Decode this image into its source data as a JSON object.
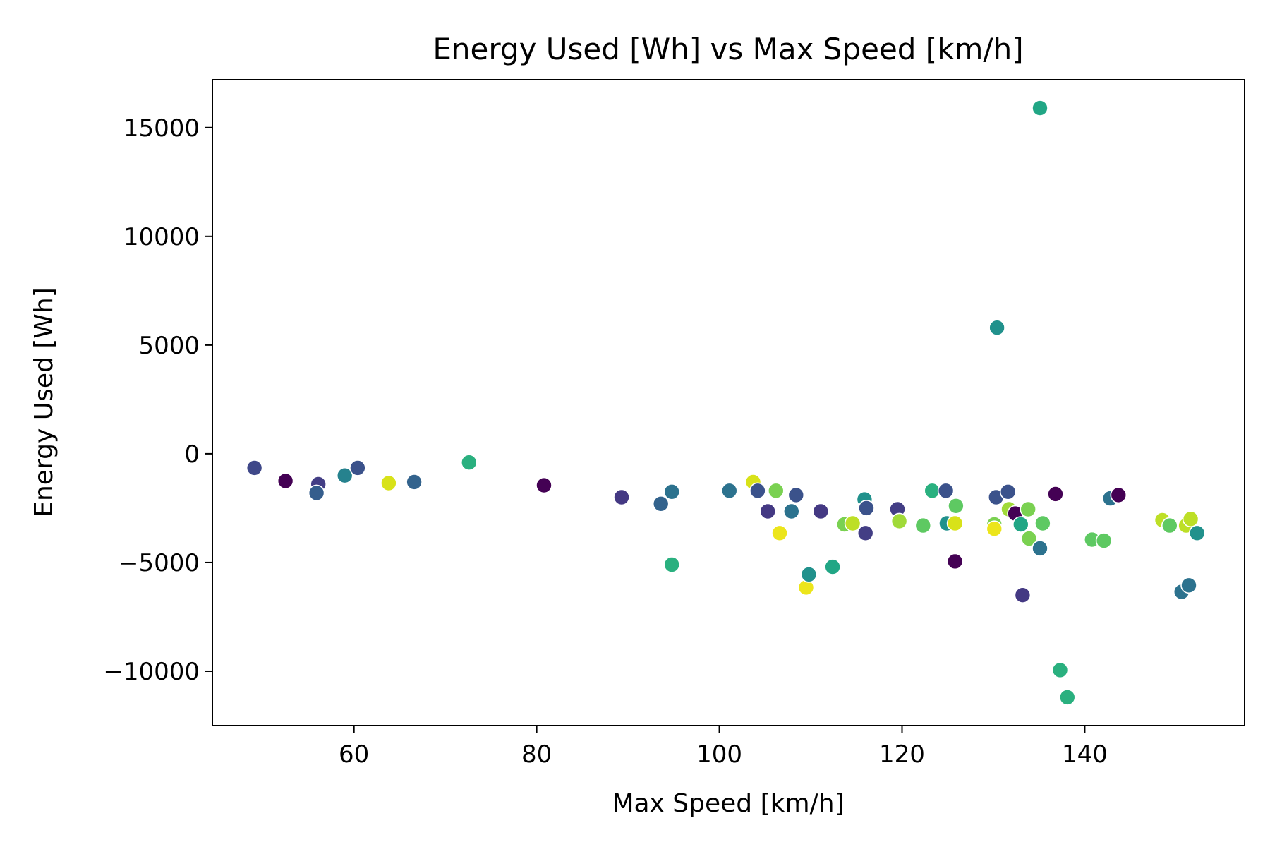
{
  "chart_data": {
    "type": "scatter",
    "title": "Energy Used [Wh] vs Max Speed [km/h]",
    "xlabel": "Max Speed [km/h]",
    "ylabel": "Energy Used [Wh]",
    "xlim": [
      44.5,
      157.5
    ],
    "ylim": [
      -12500,
      17200
    ],
    "xticks": [
      60,
      80,
      100,
      120,
      140
    ],
    "yticks": [
      15000,
      10000,
      5000,
      0,
      -5000,
      -10000
    ],
    "xtick_labels": [
      "60",
      "80",
      "100",
      "120",
      "140"
    ],
    "ytick_labels": [
      "15000",
      "10000",
      "5000",
      "0",
      "−5000",
      "−10000"
    ],
    "grid": false,
    "legend": "none",
    "colormap": "viridis",
    "points": [
      {
        "x": 49.1,
        "y": -650,
        "c": "#3f4889"
      },
      {
        "x": 52.5,
        "y": -1250,
        "c": "#440154"
      },
      {
        "x": 56.1,
        "y": -1400,
        "c": "#433e85"
      },
      {
        "x": 55.9,
        "y": -1800,
        "c": "#355e8d"
      },
      {
        "x": 59.0,
        "y": -1000,
        "c": "#26828e"
      },
      {
        "x": 60.4,
        "y": -650,
        "c": "#3b528b"
      },
      {
        "x": 63.8,
        "y": -1350,
        "c": "#d8e219"
      },
      {
        "x": 66.6,
        "y": -1300,
        "c": "#33638d"
      },
      {
        "x": 72.6,
        "y": -400,
        "c": "#2ab07f"
      },
      {
        "x": 80.8,
        "y": -1450,
        "c": "#440154"
      },
      {
        "x": 89.3,
        "y": -2000,
        "c": "#443983"
      },
      {
        "x": 93.6,
        "y": -2300,
        "c": "#33638d"
      },
      {
        "x": 94.8,
        "y": -1750,
        "c": "#2c728e"
      },
      {
        "x": 94.8,
        "y": -5100,
        "c": "#2ab07f"
      },
      {
        "x": 101.1,
        "y": -1700,
        "c": "#2c728e"
      },
      {
        "x": 103.7,
        "y": -1300,
        "c": "#d8e219"
      },
      {
        "x": 104.2,
        "y": -1700,
        "c": "#3b528b"
      },
      {
        "x": 105.3,
        "y": -2650,
        "c": "#443983"
      },
      {
        "x": 106.2,
        "y": -1700,
        "c": "#7ad151"
      },
      {
        "x": 106.6,
        "y": -3650,
        "c": "#ece51b"
      },
      {
        "x": 107.9,
        "y": -2650,
        "c": "#2c728e"
      },
      {
        "x": 108.4,
        "y": -1900,
        "c": "#3b528b"
      },
      {
        "x": 109.5,
        "y": -6150,
        "c": "#ece51b"
      },
      {
        "x": 109.8,
        "y": -5550,
        "c": "#21918c"
      },
      {
        "x": 111.1,
        "y": -2650,
        "c": "#443983"
      },
      {
        "x": 112.4,
        "y": -5200,
        "c": "#21a685"
      },
      {
        "x": 113.7,
        "y": -3250,
        "c": "#7ad151"
      },
      {
        "x": 114.6,
        "y": -3200,
        "c": "#bddf26"
      },
      {
        "x": 115.9,
        "y": -2100,
        "c": "#21918c"
      },
      {
        "x": 116.1,
        "y": -2500,
        "c": "#3b528b"
      },
      {
        "x": 116.0,
        "y": -3650,
        "c": "#433e85"
      },
      {
        "x": 119.5,
        "y": -2550,
        "c": "#433e85"
      },
      {
        "x": 119.7,
        "y": -3100,
        "c": "#a0da39"
      },
      {
        "x": 122.3,
        "y": -3300,
        "c": "#5ec962"
      },
      {
        "x": 123.3,
        "y": -1700,
        "c": "#2ab07f"
      },
      {
        "x": 124.8,
        "y": -1700,
        "c": "#3b528b"
      },
      {
        "x": 124.9,
        "y": -3200,
        "c": "#21918c"
      },
      {
        "x": 125.8,
        "y": -3200,
        "c": "#d8e219"
      },
      {
        "x": 125.9,
        "y": -2400,
        "c": "#5ec962"
      },
      {
        "x": 125.8,
        "y": -4950,
        "c": "#440154"
      },
      {
        "x": 130.1,
        "y": -3250,
        "c": "#7ad151"
      },
      {
        "x": 130.1,
        "y": -3450,
        "c": "#ece51b"
      },
      {
        "x": 130.3,
        "y": -2000,
        "c": "#3b528b"
      },
      {
        "x": 130.4,
        "y": 5800,
        "c": "#21918c"
      },
      {
        "x": 131.6,
        "y": -1750,
        "c": "#3b528b"
      },
      {
        "x": 131.7,
        "y": -2550,
        "c": "#a0da39"
      },
      {
        "x": 132.4,
        "y": -2750,
        "c": "#440154"
      },
      {
        "x": 133.0,
        "y": -3250,
        "c": "#21a685"
      },
      {
        "x": 133.2,
        "y": -6500,
        "c": "#443983"
      },
      {
        "x": 133.8,
        "y": -2550,
        "c": "#7ad151"
      },
      {
        "x": 133.9,
        "y": -3900,
        "c": "#7ad151"
      },
      {
        "x": 135.1,
        "y": -4350,
        "c": "#2c728e"
      },
      {
        "x": 135.1,
        "y": 15900,
        "c": "#21a685"
      },
      {
        "x": 135.4,
        "y": -3200,
        "c": "#5ec962"
      },
      {
        "x": 136.8,
        "y": -1850,
        "c": "#440154"
      },
      {
        "x": 137.3,
        "y": -9950,
        "c": "#2ab07f"
      },
      {
        "x": 138.1,
        "y": -11200,
        "c": "#2ab07f"
      },
      {
        "x": 140.8,
        "y": -3950,
        "c": "#5ec962"
      },
      {
        "x": 142.1,
        "y": -4000,
        "c": "#5ec962"
      },
      {
        "x": 142.8,
        "y": -2050,
        "c": "#2c728e"
      },
      {
        "x": 143.7,
        "y": -1900,
        "c": "#440154"
      },
      {
        "x": 148.5,
        "y": -3050,
        "c": "#bddf26"
      },
      {
        "x": 149.3,
        "y": -3300,
        "c": "#5ec962"
      },
      {
        "x": 150.6,
        "y": -6350,
        "c": "#2c728e"
      },
      {
        "x": 151.1,
        "y": -3300,
        "c": "#bddf26"
      },
      {
        "x": 151.4,
        "y": -6050,
        "c": "#2c728e"
      },
      {
        "x": 151.6,
        "y": -3000,
        "c": "#bddf26"
      },
      {
        "x": 152.3,
        "y": -3650,
        "c": "#21918c"
      }
    ]
  }
}
